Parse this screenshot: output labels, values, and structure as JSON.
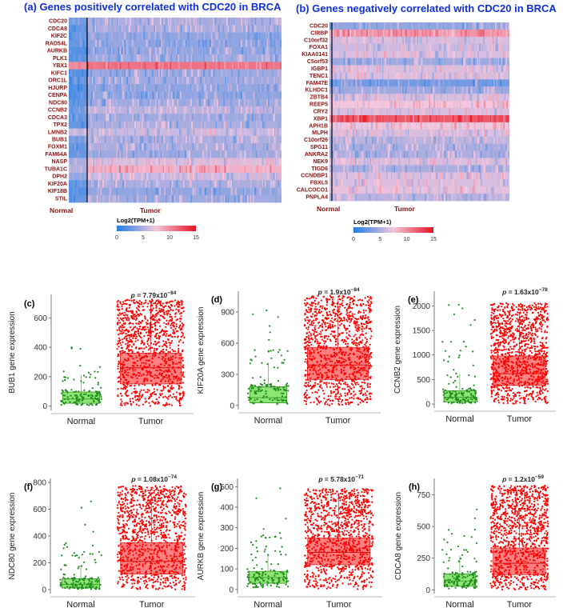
{
  "colors": {
    "low": "#1f7fe6",
    "mid": "#f4c6dd",
    "high": "#e8131f",
    "gene_label": "#8b1010",
    "title": "#1030e0",
    "normal_points": "#1b8a1b",
    "normal_box": "#7be05a",
    "tumor_points": "#ff0000"
  },
  "chart_data": [
    {
      "type": "heatmap",
      "panel": "(a)",
      "title": "(a) Genes positively correlated with CDC20 in BRCA",
      "rows": [
        "CDC20",
        "CDCA8",
        "KIF2C",
        "RAD54L",
        "AURKB",
        "PLK1",
        "YBX1",
        "KIFC1",
        "ORC1L",
        "HJURP",
        "CENPA",
        "NDC80",
        "CCNB2",
        "CDCA3",
        "TPX2",
        "LMNB2",
        "BUB1",
        "FOXM1",
        "FAM64A",
        "NASP",
        "TUBA1C",
        "DPH2",
        "KIF20A",
        "KIF18B",
        "STIL"
      ],
      "columns": [
        "Normal",
        "Tumor"
      ],
      "normal_level": [
        3,
        2.5,
        2.5,
        2.5,
        2,
        2,
        10,
        2,
        2.5,
        2,
        2,
        2.5,
        3,
        2.5,
        2.5,
        6,
        3,
        2.5,
        2.5,
        5,
        5,
        4,
        2.5,
        2,
        2.5
      ],
      "tumor_level": [
        5,
        5,
        4,
        4,
        4,
        4.5,
        11,
        4.5,
        4.5,
        4,
        4,
        4.5,
        5.5,
        4.5,
        5,
        6,
        5,
        5,
        4.5,
        6.5,
        8.5,
        6,
        5,
        4,
        4.5
      ],
      "colorbar": {
        "label": "Log2(TPM+1)",
        "ticks": [
          0,
          5,
          10,
          15
        ],
        "range": [
          0,
          15
        ]
      }
    },
    {
      "type": "heatmap",
      "panel": "(b)",
      "title": "(b) Genes negatively correlated with CDC20 in BRCA",
      "rows": [
        "CDC20",
        "CIRBP",
        "C10orf32",
        "FOXA1",
        "KIAA0141",
        "C5orf53",
        "IGBP1",
        "TENC1",
        "FAM47E",
        "KLHDC1",
        "ZBTB4",
        "REEP5",
        "CRY2",
        "XBP1",
        "APH1B",
        "MLPH",
        "C10orf26",
        "SPG11",
        "ANKRA2",
        "NEK9",
        "TIGD6",
        "CCNDBP1",
        "FBXL5",
        "CALCOCO1",
        "PNPLA4"
      ],
      "columns": [
        "Normal",
        "Tumor"
      ],
      "normal_level": [
        1.5,
        9,
        6,
        4.5,
        6,
        5,
        6,
        6.5,
        3,
        4.5,
        7,
        7,
        7,
        10,
        7,
        5,
        5,
        4.5,
        4.5,
        6,
        4.5,
        6,
        6,
        7,
        5
      ],
      "tumor_level": [
        4,
        9.5,
        6.5,
        6,
        6.5,
        4.5,
        6.5,
        6.5,
        3,
        4.5,
        6.5,
        7.5,
        6.5,
        12,
        7.5,
        6.5,
        5.5,
        5,
        5,
        6.5,
        5,
        6.5,
        6.5,
        7,
        5.5
      ],
      "colorbar": {
        "label": "Log2(TPM+1)",
        "ticks": [
          0,
          5,
          10,
          15
        ],
        "range": [
          0,
          15
        ]
      }
    },
    {
      "type": "scatter",
      "panel": "(c)",
      "ylabel": "BUB1 gene expression",
      "p_prefix": "p =",
      "p_text": "7.79x10",
      "p_exp": "−84",
      "categories": [
        "Normal",
        "Tumor"
      ],
      "yticks": [
        0,
        200,
        400,
        600
      ],
      "ylim": [
        -30,
        760
      ],
      "normal": {
        "q1": 18,
        "median": 48,
        "q3": 95,
        "max": 410,
        "n": 130
      },
      "tumor": {
        "q1": 150,
        "median": 260,
        "q3": 360,
        "max": 740,
        "n": 1100
      }
    },
    {
      "type": "scatter",
      "panel": "(d)",
      "ylabel": "KIF20A gene expression",
      "p_prefix": "p =",
      "p_text": "1.9x10",
      "p_exp": "−84",
      "categories": [
        "Normal",
        "Tumor"
      ],
      "yticks": [
        0,
        300,
        600,
        900
      ],
      "ylim": [
        -40,
        1100
      ],
      "normal": {
        "q1": 25,
        "median": 75,
        "q3": 180,
        "max": 970,
        "n": 130
      },
      "tumor": {
        "q1": 250,
        "median": 390,
        "q3": 560,
        "max": 1080,
        "n": 1100
      }
    },
    {
      "type": "scatter",
      "panel": "(e)",
      "ylabel": "CCNB2 gene expression",
      "p_prefix": "p =",
      "p_text": "1.63x10",
      "p_exp": "−78",
      "categories": [
        "Normal",
        "Tumor"
      ],
      "yticks": [
        0,
        500,
        1000,
        1500,
        2000
      ],
      "ylim": [
        -80,
        2300
      ],
      "normal": {
        "q1": 45,
        "median": 140,
        "q3": 270,
        "max": 2150,
        "n": 130
      },
      "tumor": {
        "q1": 380,
        "median": 620,
        "q3": 980,
        "max": 2100,
        "n": 1100
      }
    },
    {
      "type": "scatter",
      "panel": "(f)",
      "ylabel": "NDC80 gene expression",
      "p_prefix": "p =",
      "p_text": "1.08x10",
      "p_exp": "−74",
      "categories": [
        "Normal",
        "Tumor"
      ],
      "yticks": [
        0,
        200,
        400,
        600,
        800
      ],
      "ylim": [
        -30,
        830
      ],
      "normal": {
        "q1": 12,
        "median": 38,
        "q3": 80,
        "max": 690,
        "n": 130
      },
      "tumor": {
        "q1": 115,
        "median": 210,
        "q3": 350,
        "max": 790,
        "n": 1100
      }
    },
    {
      "type": "scatter",
      "panel": "(g)",
      "ylabel": "AURKB gene expression",
      "p_prefix": "p =",
      "p_text": "5.78x10",
      "p_exp": "−71",
      "categories": [
        "Normal",
        "Tumor"
      ],
      "yticks": [
        0,
        100,
        200,
        300,
        400,
        500
      ],
      "ylim": [
        -20,
        540
      ],
      "normal": {
        "q1": 30,
        "median": 58,
        "q3": 88,
        "max": 510,
        "n": 130
      },
      "tumor": {
        "q1": 120,
        "median": 180,
        "q3": 250,
        "max": 500,
        "n": 1100
      }
    },
    {
      "type": "scatter",
      "panel": "(h)",
      "ylabel": "CDCA8 gene expression",
      "p_prefix": "p =",
      "p_text": "1.2x10",
      "p_exp": "−59",
      "categories": [
        "Normal",
        "Tumor"
      ],
      "yticks": [
        0,
        250,
        500,
        750
      ],
      "ylim": [
        -30,
        880
      ],
      "normal": {
        "q1": 28,
        "median": 70,
        "q3": 125,
        "max": 800,
        "n": 130
      },
      "tumor": {
        "q1": 120,
        "median": 210,
        "q3": 330,
        "max": 840,
        "n": 1100
      }
    }
  ]
}
